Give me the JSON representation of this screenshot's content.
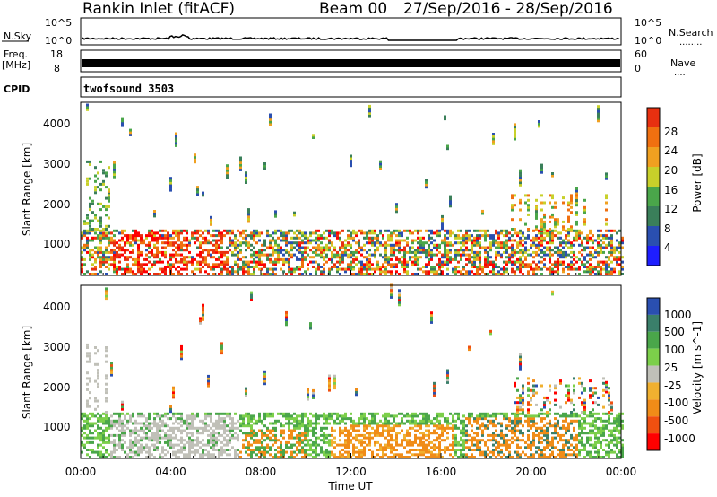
{
  "header": {
    "station": "Rankin Inlet (fitACF)",
    "beam": "Beam 00",
    "date_range": "27/Sep/2016 - 28/Sep/2016"
  },
  "nsky_panel": {
    "left_label": "N.Sky",
    "right_label": "N.Search",
    "right_legend_line": "........",
    "ticks": [
      "10^5",
      "10^0"
    ]
  },
  "freq_panel": {
    "left_label_1": "Freq.",
    "left_label_2": "[MHz]",
    "right_label": "Nave",
    "right_legend_line": "....",
    "left_ticks": [
      "18",
      "8"
    ],
    "right_ticks": [
      "60",
      "0"
    ]
  },
  "cpid_panel": {
    "label": "CPID",
    "value": "twofsound 3503"
  },
  "colors": {
    "power_scale": [
      "#1e1eff",
      "#2a4fb0",
      "#3a7f5a",
      "#4aa64a",
      "#c8d02a",
      "#f0a020",
      "#f07010",
      "#e83010",
      "#ff0000"
    ],
    "velocity_scale": [
      "#ff0000",
      "#f05010",
      "#f08c18",
      "#f0b030",
      "#c0c0b8",
      "#7ccf4a",
      "#4aa64a",
      "#3a7f6a",
      "#2a4fb0"
    ]
  },
  "chart_data": [
    {
      "type": "heatmap",
      "name": "power",
      "ylabel": "Slant Range [km]",
      "yticks": [
        "1000",
        "2000",
        "3000",
        "4000"
      ],
      "ylim": [
        180,
        4500
      ],
      "xlim": [
        "00:00",
        "24:00"
      ],
      "colorbar": {
        "label": "Power [dB]",
        "ticks": [
          "4",
          "8",
          "12",
          "16",
          "20",
          "24",
          "28"
        ],
        "range": [
          0,
          32
        ]
      }
    },
    {
      "type": "heatmap",
      "name": "velocity",
      "ylabel": "Slant Range [km]",
      "yticks": [
        "1000",
        "2000",
        "3000",
        "4000"
      ],
      "ylim": [
        180,
        4500
      ],
      "xlim": [
        "00:00",
        "24:00"
      ],
      "xlabel": "Time UT",
      "xticks": [
        "00:00",
        "04:00",
        "08:00",
        "12:00",
        "16:00",
        "20:00",
        "00:00"
      ],
      "colorbar": {
        "label": "Velocity [m s^-1]",
        "ticks": [
          "1000",
          "500",
          "100",
          "25",
          "-25",
          "-100",
          "-500",
          "-1000"
        ]
      }
    }
  ]
}
